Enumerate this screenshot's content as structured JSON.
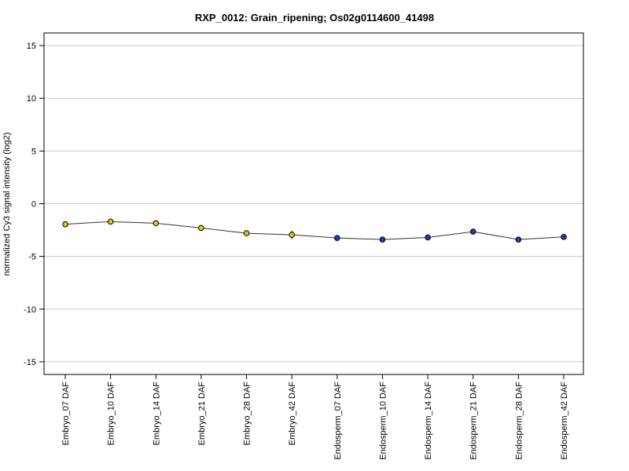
{
  "chart_data": {
    "type": "line",
    "title": "RXP_0012: Grain_ripening; Os02g0114600_41498",
    "ylabel": "normalized Cy3 signal intensity (log2)",
    "xlabel": "",
    "ylim": [
      -16.2,
      16.2
    ],
    "yticks": [
      -15,
      -10,
      -5,
      0,
      5,
      10,
      15
    ],
    "grid": true,
    "categories": [
      "Embryo_07 DAF",
      "Embryo_10 DAF",
      "Embryo_14 DAF",
      "Embryo_21 DAF",
      "Embryo_28 DAF",
      "Embryo_42 DAF",
      "Endosperm_07 DAF",
      "Endosperm_10 DAF",
      "Endosperm_14 DAF",
      "Endosperm_21 DAF",
      "Endosperm_28 DAF",
      "Endosperm_42 DAF"
    ],
    "values": [
      -1.95,
      -1.7,
      -1.85,
      -2.3,
      -2.8,
      -2.95,
      -3.25,
      -3.4,
      -3.2,
      -2.65,
      -3.4,
      -3.15
    ],
    "error": [
      0.1,
      0.15,
      0.1,
      0.12,
      0.1,
      0.4,
      0.1,
      0.1,
      0.1,
      0.1,
      0.15,
      0.15
    ],
    "point_colors": [
      "#e8c619",
      "#e8c619",
      "#e8c619",
      "#e8c619",
      "#e8c619",
      "#e8c619",
      "#1c3fb8",
      "#1c3fb8",
      "#1c3fb8",
      "#1c3fb8",
      "#1c3fb8",
      "#1c3fb8"
    ]
  }
}
